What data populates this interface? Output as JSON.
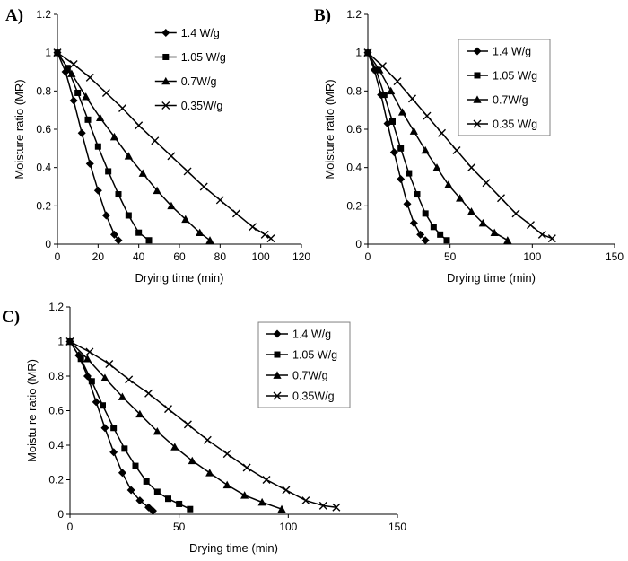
{
  "figure": {
    "background": "#ffffff",
    "line_color": "#000000",
    "text_color": "#000000"
  },
  "chart_data": [
    {
      "type": "line",
      "panel_label": "A)",
      "xlabel": "Drying time (min)",
      "ylabel": "Moisture ratio (MR)",
      "xlim": [
        0,
        120
      ],
      "xticks": [
        0,
        20,
        40,
        60,
        80,
        100,
        120
      ],
      "ylim": [
        0,
        1.2
      ],
      "yticks": [
        0,
        0.2,
        0.4,
        0.6,
        0.8,
        1,
        1.2
      ],
      "grid": false,
      "legend": {
        "position": "inside-top-right",
        "fx": 0.4,
        "fy": 0.08,
        "spacing": 27,
        "border": false
      },
      "series": [
        {
          "name": "1.4 W/g",
          "marker": "diamond",
          "points": [
            [
              0,
              1
            ],
            [
              4,
              0.9
            ],
            [
              8,
              0.75
            ],
            [
              12,
              0.58
            ],
            [
              16,
              0.42
            ],
            [
              20,
              0.28
            ],
            [
              24,
              0.15
            ],
            [
              28,
              0.05
            ],
            [
              30,
              0.02
            ]
          ]
        },
        {
          "name": "1.05 W/g",
          "marker": "square",
          "points": [
            [
              0,
              1
            ],
            [
              5,
              0.92
            ],
            [
              10,
              0.79
            ],
            [
              15,
              0.65
            ],
            [
              20,
              0.51
            ],
            [
              25,
              0.38
            ],
            [
              30,
              0.26
            ],
            [
              35,
              0.15
            ],
            [
              40,
              0.06
            ],
            [
              45,
              0.02
            ]
          ]
        },
        {
          "name": "0.7W/g",
          "marker": "triangle",
          "points": [
            [
              0,
              1
            ],
            [
              7,
              0.89
            ],
            [
              14,
              0.77
            ],
            [
              21,
              0.66
            ],
            [
              28,
              0.56
            ],
            [
              35,
              0.46
            ],
            [
              42,
              0.37
            ],
            [
              49,
              0.28
            ],
            [
              56,
              0.2
            ],
            [
              63,
              0.13
            ],
            [
              70,
              0.06
            ],
            [
              75,
              0.02
            ]
          ]
        },
        {
          "name": "0.35W/g",
          "marker": "x",
          "points": [
            [
              0,
              1
            ],
            [
              8,
              0.94
            ],
            [
              16,
              0.87
            ],
            [
              24,
              0.79
            ],
            [
              32,
              0.71
            ],
            [
              40,
              0.62
            ],
            [
              48,
              0.54
            ],
            [
              56,
              0.46
            ],
            [
              64,
              0.38
            ],
            [
              72,
              0.3
            ],
            [
              80,
              0.23
            ],
            [
              88,
              0.16
            ],
            [
              96,
              0.09
            ],
            [
              102,
              0.05
            ],
            [
              105,
              0.03
            ]
          ]
        }
      ]
    },
    {
      "type": "line",
      "panel_label": "B)",
      "xlabel": "Drying time (min)",
      "ylabel": "Moisture ratio (MR)",
      "xlim": [
        0,
        150
      ],
      "xticks": [
        0,
        50,
        100,
        150
      ],
      "ylim": [
        0,
        1.2
      ],
      "yticks": [
        0,
        0.2,
        0.4,
        0.6,
        0.8,
        1,
        1.2
      ],
      "grid": false,
      "legend": {
        "position": "inside-top-right",
        "fx": 0.4,
        "fy": 0.16,
        "spacing": 27,
        "border": true
      },
      "series": [
        {
          "name": "1.4 W/g",
          "marker": "diamond",
          "points": [
            [
              0,
              1
            ],
            [
              4,
              0.91
            ],
            [
              8,
              0.78
            ],
            [
              12,
              0.63
            ],
            [
              16,
              0.48
            ],
            [
              20,
              0.34
            ],
            [
              24,
              0.21
            ],
            [
              28,
              0.11
            ],
            [
              32,
              0.05
            ],
            [
              35,
              0.02
            ]
          ]
        },
        {
          "name": "1.05 W/g",
          "marker": "square",
          "points": [
            [
              0,
              1
            ],
            [
              5,
              0.91
            ],
            [
              10,
              0.78
            ],
            [
              15,
              0.64
            ],
            [
              20,
              0.5
            ],
            [
              25,
              0.37
            ],
            [
              30,
              0.26
            ],
            [
              35,
              0.16
            ],
            [
              40,
              0.09
            ],
            [
              44,
              0.05
            ],
            [
              48,
              0.02
            ]
          ]
        },
        {
          "name": "0.7W/g",
          "marker": "triangle",
          "points": [
            [
              0,
              1
            ],
            [
              7,
              0.91
            ],
            [
              14,
              0.8
            ],
            [
              21,
              0.69
            ],
            [
              28,
              0.59
            ],
            [
              35,
              0.49
            ],
            [
              42,
              0.4
            ],
            [
              49,
              0.31
            ],
            [
              56,
              0.24
            ],
            [
              63,
              0.17
            ],
            [
              70,
              0.11
            ],
            [
              77,
              0.06
            ],
            [
              85,
              0.02
            ]
          ]
        },
        {
          "name": "0.35 W/g",
          "marker": "x",
          "points": [
            [
              0,
              1
            ],
            [
              9,
              0.93
            ],
            [
              18,
              0.85
            ],
            [
              27,
              0.76
            ],
            [
              36,
              0.67
            ],
            [
              45,
              0.58
            ],
            [
              54,
              0.49
            ],
            [
              63,
              0.4
            ],
            [
              72,
              0.32
            ],
            [
              81,
              0.24
            ],
            [
              90,
              0.16
            ],
            [
              99,
              0.1
            ],
            [
              106,
              0.05
            ],
            [
              112,
              0.03
            ]
          ]
        }
      ]
    },
    {
      "type": "line",
      "panel_label": "C)",
      "xlabel": "Drying time (min)",
      "ylabel": "Moistu re ratio (MR)",
      "xlim": [
        0,
        150
      ],
      "xticks": [
        0,
        50,
        100,
        150
      ],
      "ylim": [
        0,
        1.2
      ],
      "yticks": [
        0,
        0.2,
        0.4,
        0.6,
        0.8,
        1,
        1.2
      ],
      "grid": false,
      "legend": {
        "position": "inside-top-right",
        "fx": 0.6,
        "fy": 0.13,
        "spacing": 23,
        "border": true
      },
      "series": [
        {
          "name": "1.4 W/g",
          "marker": "diamond",
          "points": [
            [
              0,
              1
            ],
            [
              4,
              0.92
            ],
            [
              8,
              0.8
            ],
            [
              12,
              0.65
            ],
            [
              16,
              0.5
            ],
            [
              20,
              0.36
            ],
            [
              24,
              0.24
            ],
            [
              28,
              0.14
            ],
            [
              32,
              0.08
            ],
            [
              36,
              0.04
            ],
            [
              38,
              0.02
            ]
          ]
        },
        {
          "name": "1.05 W/g",
          "marker": "square",
          "points": [
            [
              0,
              1
            ],
            [
              5,
              0.9
            ],
            [
              10,
              0.77
            ],
            [
              15,
              0.63
            ],
            [
              20,
              0.5
            ],
            [
              25,
              0.38
            ],
            [
              30,
              0.28
            ],
            [
              35,
              0.19
            ],
            [
              40,
              0.13
            ],
            [
              45,
              0.09
            ],
            [
              50,
              0.06
            ],
            [
              55,
              0.03
            ]
          ]
        },
        {
          "name": "0.7W/g",
          "marker": "triangle",
          "points": [
            [
              0,
              1
            ],
            [
              8,
              0.9
            ],
            [
              16,
              0.79
            ],
            [
              24,
              0.68
            ],
            [
              32,
              0.58
            ],
            [
              40,
              0.48
            ],
            [
              48,
              0.39
            ],
            [
              56,
              0.31
            ],
            [
              64,
              0.24
            ],
            [
              72,
              0.17
            ],
            [
              80,
              0.11
            ],
            [
              88,
              0.07
            ],
            [
              97,
              0.03
            ]
          ]
        },
        {
          "name": "0.35W/g",
          "marker": "x",
          "points": [
            [
              0,
              1
            ],
            [
              9,
              0.94
            ],
            [
              18,
              0.87
            ],
            [
              27,
              0.78
            ],
            [
              36,
              0.7
            ],
            [
              45,
              0.61
            ],
            [
              54,
              0.52
            ],
            [
              63,
              0.43
            ],
            [
              72,
              0.35
            ],
            [
              81,
              0.27
            ],
            [
              90,
              0.2
            ],
            [
              99,
              0.14
            ],
            [
              108,
              0.08
            ],
            [
              116,
              0.05
            ],
            [
              122,
              0.04
            ]
          ]
        }
      ]
    }
  ]
}
